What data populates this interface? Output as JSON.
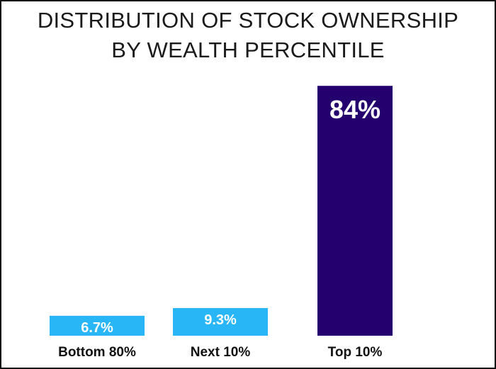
{
  "title_lines": [
    "DISTRIBUTION OF STOCK OWNERSHIP",
    "BY WEALTH PERCENTILE"
  ],
  "colors": {
    "small_bar": "#29b6f6",
    "large_bar": "#24006e",
    "text": "#111111"
  },
  "chart_data": {
    "type": "bar",
    "title": "DISTRIBUTION OF STOCK OWNERSHIP BY WEALTH PERCENTILE",
    "xlabel": "",
    "ylabel": "",
    "categories": [
      "Bottom 80%",
      "Next 10%",
      "Top 10%"
    ],
    "values": [
      6.7,
      9.3,
      84
    ],
    "value_labels": [
      "6.7%",
      "9.3%",
      "84%"
    ],
    "ylim": [
      0,
      90
    ],
    "grid": false,
    "legend": "none"
  }
}
